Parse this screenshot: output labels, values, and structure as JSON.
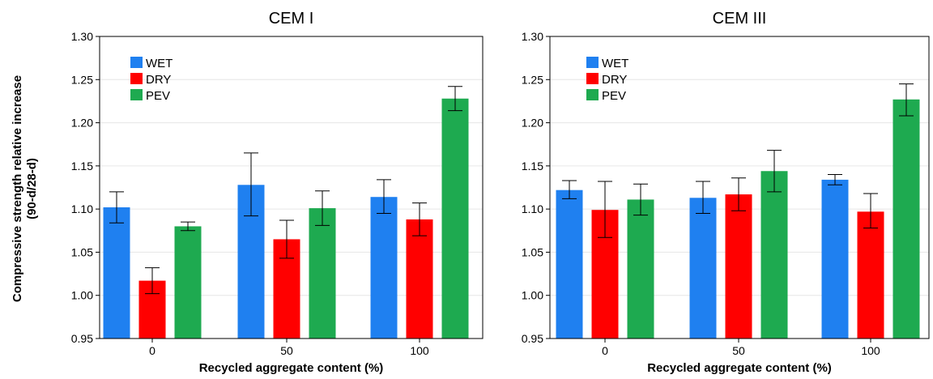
{
  "ylabel_line1": "Compressive strength relative increase",
  "ylabel_line2": "(90-d/28-d)",
  "legend": [
    {
      "name": "WET",
      "color": "#1f80f0"
    },
    {
      "name": "DRY",
      "color": "#ff0000"
    },
    {
      "name": "PEV",
      "color": "#1eaa50"
    }
  ],
  "chart_data": [
    {
      "type": "bar",
      "title": "CEM I",
      "xlabel": "Recycled aggregate content (%)",
      "ylabel": "Compressive strength relative increase (90-d/28-d)",
      "categories": [
        "0",
        "50",
        "100"
      ],
      "ylim": [
        0.95,
        1.3
      ],
      "yticks": [
        "0.95",
        "1.00",
        "1.05",
        "1.10",
        "1.15",
        "1.20",
        "1.25",
        "1.30"
      ],
      "grid": true,
      "legend_position": "top-left",
      "series": [
        {
          "name": "WET",
          "values": [
            1.102,
            1.128,
            1.114
          ],
          "err_low": [
            1.084,
            1.092,
            1.095
          ],
          "err_high": [
            1.12,
            1.165,
            1.134
          ]
        },
        {
          "name": "DRY",
          "values": [
            1.017,
            1.065,
            1.088
          ],
          "err_low": [
            1.002,
            1.043,
            1.069
          ],
          "err_high": [
            1.032,
            1.087,
            1.107
          ]
        },
        {
          "name": "PEV",
          "values": [
            1.08,
            1.101,
            1.228
          ],
          "err_low": [
            1.075,
            1.081,
            1.214
          ],
          "err_high": [
            1.085,
            1.121,
            1.242
          ]
        }
      ]
    },
    {
      "type": "bar",
      "title": "CEM III",
      "xlabel": "Recycled aggregate content (%)",
      "categories": [
        "0",
        "50",
        "100"
      ],
      "ylim": [
        0.95,
        1.3
      ],
      "yticks": [
        "0.95",
        "1.00",
        "1.05",
        "1.10",
        "1.15",
        "1.20",
        "1.25",
        "1.30"
      ],
      "grid": true,
      "legend_position": "top-left",
      "series": [
        {
          "name": "WET",
          "values": [
            1.122,
            1.113,
            1.134
          ],
          "err_low": [
            1.112,
            1.095,
            1.128
          ],
          "err_high": [
            1.133,
            1.132,
            1.14
          ]
        },
        {
          "name": "DRY",
          "values": [
            1.099,
            1.117,
            1.097
          ],
          "err_low": [
            1.067,
            1.098,
            1.078
          ],
          "err_high": [
            1.132,
            1.136,
            1.118
          ]
        },
        {
          "name": "PEV",
          "values": [
            1.111,
            1.144,
            1.227
          ],
          "err_low": [
            1.093,
            1.12,
            1.208
          ],
          "err_high": [
            1.129,
            1.168,
            1.245
          ]
        }
      ]
    }
  ]
}
